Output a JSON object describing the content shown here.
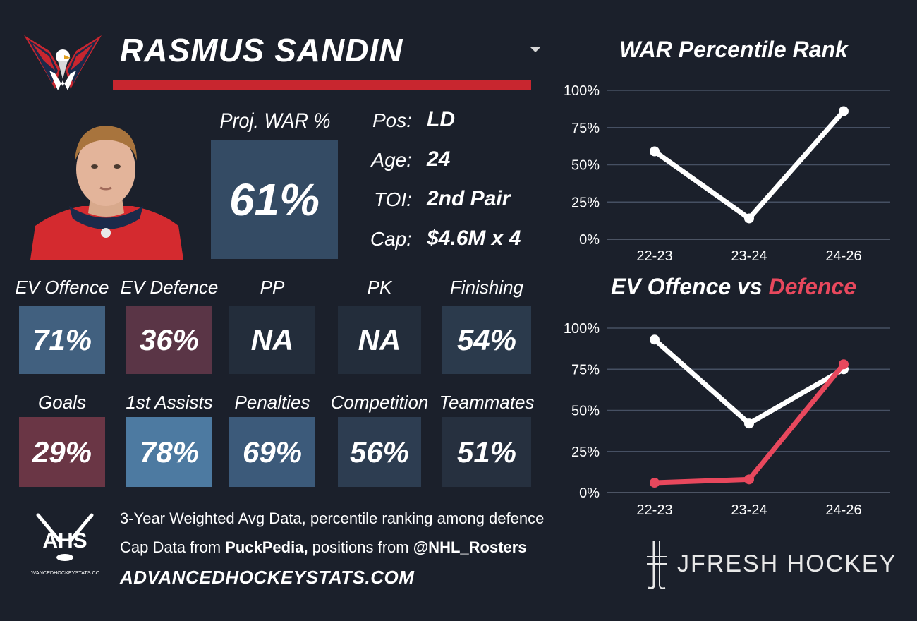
{
  "player": {
    "name": "RASMUS SANDIN"
  },
  "team_logo": {
    "name": "washington-capitals-logo"
  },
  "projection": {
    "label": "Proj. WAR %",
    "value": "61%",
    "color": "#344b64"
  },
  "info": [
    {
      "label": "Pos:",
      "value": "LD"
    },
    {
      "label": "Age:",
      "value": "24"
    },
    {
      "label": "TOI:",
      "value": "2nd Pair"
    },
    {
      "label": "Cap:",
      "value": "$4.6M x 4"
    }
  ],
  "stats_row1": [
    {
      "label": "EV Offence",
      "value": "71%",
      "color": "#41607f"
    },
    {
      "label": "EV Defence",
      "value": "36%",
      "color": "#5a3546"
    },
    {
      "label": "PP",
      "value": "NA",
      "color": "#232d3b"
    },
    {
      "label": "PK",
      "value": "NA",
      "color": "#232d3b"
    },
    {
      "label": "Finishing",
      "value": "54%",
      "color": "#2b3a4c"
    }
  ],
  "stats_row2": [
    {
      "label": "Goals",
      "value": "29%",
      "color": "#6a3645"
    },
    {
      "label": "1st Assists",
      "value": "78%",
      "color": "#4d7aa1"
    },
    {
      "label": "Penalties",
      "value": "69%",
      "color": "#3c5a7a"
    },
    {
      "label": "Competition",
      "value": "56%",
      "color": "#2d3d51"
    },
    {
      "label": "Teammates",
      "value": "51%",
      "color": "#26303f"
    }
  ],
  "footer": {
    "line1": "3-Year Weighted Avg Data, percentile ranking among defence",
    "line2_prefix": "Cap Data from ",
    "line2_bold1": "PuckPedia,",
    "line2_mid": " positions from ",
    "line2_bold2": "@NHL_Rosters",
    "site": "ADVANCEDHOCKEYSTATS.COM",
    "ahs_logo_text": "AHS",
    "ahs_logo_sub": "ADVANCEDHOCKEYSTATS.COM"
  },
  "brand": {
    "text": "JFRESH HOCKEY"
  },
  "colors": {
    "accent_red": "#c8262f",
    "defence_line": "#e8485d",
    "offence_line": "#ffffff",
    "background": "#1b202b"
  },
  "chart_data": [
    {
      "type": "line",
      "title": "WAR Percentile Rank",
      "categories": [
        "22-23",
        "23-24",
        "24-26"
      ],
      "yticks": [
        "0%",
        "25%",
        "50%",
        "75%",
        "100%"
      ],
      "ylim": [
        0,
        100
      ],
      "grid": true,
      "series": [
        {
          "color": "#ffffff",
          "values": [
            59,
            14,
            86
          ]
        }
      ]
    },
    {
      "type": "line",
      "title_part1": "EV Offence vs ",
      "title_part2": "Defence",
      "categories": [
        "22-23",
        "23-24",
        "24-26"
      ],
      "yticks": [
        "0%",
        "25%",
        "50%",
        "75%",
        "100%"
      ],
      "ylim": [
        0,
        100
      ],
      "grid": true,
      "series": [
        {
          "color": "#ffffff",
          "values": [
            93,
            42,
            75
          ]
        },
        {
          "color": "#e8485d",
          "values": [
            6,
            8,
            78
          ]
        }
      ]
    }
  ]
}
